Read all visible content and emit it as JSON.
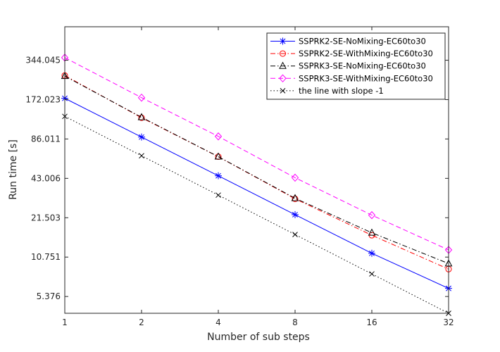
{
  "chart_data": {
    "type": "line",
    "xlabel": "Number of sub steps",
    "ylabel": "Run time [s]",
    "x": [
      1,
      2,
      4,
      8,
      16,
      32
    ],
    "x_scale": "log2",
    "y_scale": "log",
    "xlim": [
      1,
      32
    ],
    "ylim": [
      4.0,
      620
    ],
    "xticks": [
      1,
      2,
      4,
      8,
      16,
      32
    ],
    "xtick_labels": [
      "1",
      "2",
      "4",
      "8",
      "16",
      "32"
    ],
    "yticks": [
      5.376,
      10.751,
      21.503,
      43.006,
      86.011,
      172.023,
      344.045
    ],
    "ytick_labels": [
      "5.376",
      "10.751",
      "21.503",
      "43.006",
      "86.011",
      "172.023",
      "344.045"
    ],
    "grid": false,
    "legend_position": "top-right",
    "series": [
      {
        "name": "SSPRK2-SE-NoMixing-EC60to30",
        "values": [
          176,
          89,
          45,
          22.7,
          11.5,
          6.2
        ],
        "color": "#0000ff",
        "dash": "solid",
        "marker": "asterisk"
      },
      {
        "name": "SSPRK2-SE-WithMixing-EC60to30",
        "values": [
          263,
          125,
          63,
          30.0,
          15.8,
          8.7
        ],
        "color": "#ff0000",
        "dash": "dashdot",
        "marker": "circle"
      },
      {
        "name": "SSPRK3-SE-NoMixing-EC60to30",
        "values": [
          260,
          126,
          63,
          30.3,
          16.5,
          9.6
        ],
        "color": "#000000",
        "dash": "dashdot",
        "marker": "triangle"
      },
      {
        "name": "SSPRK3-SE-WithMixing-EC60to30",
        "values": [
          360,
          178,
          90,
          43.5,
          22.5,
          12.2
        ],
        "color": "#ff00ff",
        "dash": "dashed",
        "marker": "diamond"
      },
      {
        "name": "the line with slope -1",
        "values": [
          128,
          64,
          32,
          16,
          8,
          4
        ],
        "color": "#000000",
        "dash": "dotted",
        "marker": "x"
      }
    ]
  }
}
